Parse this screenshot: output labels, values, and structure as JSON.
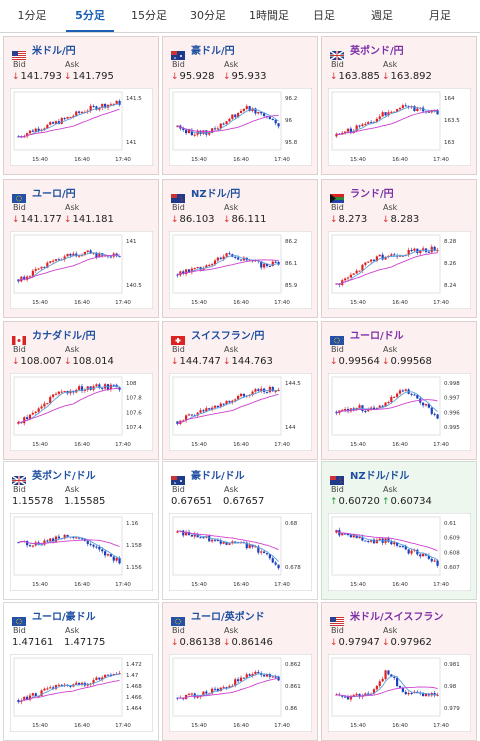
{
  "tabs": [
    {
      "label": "1分足",
      "active": false
    },
    {
      "label": "5分足",
      "active": true
    },
    {
      "label": "15分足",
      "active": false
    },
    {
      "label": "30分足",
      "active": false
    },
    {
      "label": "1時間足",
      "active": false
    },
    {
      "label": "日足",
      "active": false
    },
    {
      "label": "週足",
      "active": false
    },
    {
      "label": "月足",
      "active": false
    }
  ],
  "labels": {
    "bid": "Bid",
    "ask": "Ask"
  },
  "colors": {
    "up": "#e02020",
    "down": "#1a3fbf",
    "ma_fast": "#5aa0e0",
    "ma_slow": "#d040d0",
    "arrow_down": "#e03030",
    "arrow_up": "#1f9a3c"
  },
  "cards": [
    {
      "pair": "米ドル/円",
      "flag": "us",
      "bid": "141.793",
      "ask": "141.795",
      "dir": "down",
      "ticks": [
        "141.5",
        "141"
      ],
      "xticks": [
        "15:40",
        "16:40",
        "17:40"
      ]
    },
    {
      "pair": "豪ドル/円",
      "flag": "au",
      "bid": "95.928",
      "ask": "95.933",
      "dir": "down",
      "ticks": [
        "96.2",
        "96",
        "95.8"
      ],
      "xticks": [
        "15:40",
        "16:40",
        "17:40"
      ]
    },
    {
      "pair": "英ポンド/円",
      "flag": "gb",
      "bid": "163.885",
      "ask": "163.892",
      "dir": "down",
      "ticks": [
        "164",
        "163.5",
        "163"
      ],
      "xticks": [
        "15:40",
        "16:40",
        "17:40"
      ]
    },
    {
      "pair": "ユーロ/円",
      "flag": "eu",
      "bid": "141.177",
      "ask": "141.181",
      "dir": "down",
      "ticks": [
        "141",
        "140.5"
      ],
      "xticks": [
        "15:40",
        "16:40",
        "17:40"
      ]
    },
    {
      "pair": "NZドル/円",
      "flag": "nz",
      "bid": "86.103",
      "ask": "86.111",
      "dir": "down",
      "ticks": [
        "86.2",
        "86.1",
        "85.9"
      ],
      "xticks": [
        "15:40",
        "16:40",
        "17:40"
      ]
    },
    {
      "pair": "ランド/円",
      "flag": "za",
      "bid": "8.273",
      "ask": "8.283",
      "dir": "down",
      "ticks": [
        "8.28",
        "8.26",
        "8.24"
      ],
      "xticks": [
        "15:40",
        "16:40",
        "17:40"
      ]
    },
    {
      "pair": "カナダドル/円",
      "flag": "ca",
      "bid": "108.007",
      "ask": "108.014",
      "dir": "down",
      "ticks": [
        "108",
        "107.8",
        "107.6",
        "107.4"
      ],
      "xticks": [
        "15:40",
        "16:40",
        "17:40"
      ]
    },
    {
      "pair": "スイスフラン/円",
      "flag": "ch",
      "bid": "144.747",
      "ask": "144.763",
      "dir": "down",
      "ticks": [
        "144.5",
        "144"
      ],
      "xticks": [
        "15:40",
        "16:40",
        "17:40"
      ]
    },
    {
      "pair": "ユーロ/ドル",
      "flag": "eu",
      "bid": "0.99564",
      "ask": "0.99568",
      "dir": "down",
      "ticks": [
        "0.998",
        "0.997",
        "0.996",
        "0.995"
      ],
      "xticks": [
        "15:40",
        "16:40",
        "17:40"
      ]
    },
    {
      "pair": "英ポンド/ドル",
      "flag": "gb",
      "bid": "1.15578",
      "ask": "1.15585",
      "dir": "neutral",
      "ticks": [
        "1.16",
        "1.158",
        "1.156"
      ],
      "xticks": [
        "15:40",
        "16:40",
        "17:40"
      ]
    },
    {
      "pair": "豪ドル/ドル",
      "flag": "au",
      "bid": "0.67651",
      "ask": "0.67657",
      "dir": "neutral",
      "ticks": [
        "0.68",
        "0.678"
      ],
      "xticks": [
        "15:40",
        "16:40",
        "17:40"
      ]
    },
    {
      "pair": "NZドル/ドル",
      "flag": "nz",
      "bid": "0.60720",
      "ask": "0.60734",
      "dir": "up",
      "ticks": [
        "0.61",
        "0.609",
        "0.608",
        "0.607"
      ],
      "xticks": [
        "15:40",
        "16:40",
        "17:40"
      ]
    },
    {
      "pair": "ユーロ/豪ドル",
      "flag": "eu",
      "bid": "1.47161",
      "ask": "1.47175",
      "dir": "neutral",
      "ticks": [
        "1.472",
        "1.47",
        "1.468",
        "1.466",
        "1.464"
      ],
      "xticks": [
        "15:40",
        "16:40",
        "17:40"
      ]
    },
    {
      "pair": "ユーロ/英ポンド",
      "flag": "eu",
      "bid": "0.86138",
      "ask": "0.86146",
      "dir": "down",
      "ticks": [
        "0.862",
        "0.861",
        "0.86"
      ],
      "xticks": [
        "15:40",
        "16:40",
        "17:40"
      ]
    },
    {
      "pair": "米ドル/スイスフラン",
      "flag": "us",
      "bid": "0.97947",
      "ask": "0.97962",
      "dir": "down",
      "ticks": [
        "0.981",
        "0.98",
        "0.979"
      ],
      "xticks": [
        "15:40",
        "16:40",
        "17:40"
      ]
    }
  ]
}
